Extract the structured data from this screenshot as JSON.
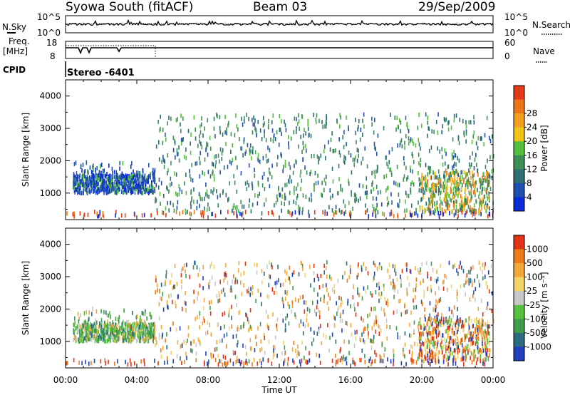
{
  "header": {
    "station": "Syowa South (fitACF)",
    "beam": "Beam 03",
    "date": "29/Sep/2009"
  },
  "top_panels": {
    "nsky_label": "N.Sky",
    "nsearch_label": "N.Search",
    "noise_ticks": [
      "10^5",
      "10^0"
    ],
    "freq_label": "Freq.",
    "freq_unit": "[MHz]",
    "freq_ticks": [
      "18",
      "8"
    ],
    "nave_ticks": [
      "60",
      "0"
    ],
    "nave_label": "Nave",
    "cpid_label": "CPID",
    "cpid_value": "Stereo -6401"
  },
  "colors": {
    "power_scale": [
      "#0a2bd6",
      "#1f4fb0",
      "#2f6e72",
      "#3e8f56",
      "#52c13c",
      "#f2c41a",
      "#f2a01e",
      "#ee7418",
      "#e23a16"
    ],
    "velocity_scale": [
      "#1f3fbf",
      "#2c6a80",
      "#3e9e4a",
      "#57c23f",
      "#c8c8c8",
      "#f5d36a",
      "#f3a838",
      "#ee7c1a",
      "#e23516"
    ]
  },
  "chart_data": [
    {
      "type": "heatmap",
      "title": "",
      "xlabel": "",
      "ylabel": "Slant Range [km]",
      "x_ticks": [
        "00:00",
        "04:00",
        "08:00",
        "12:00",
        "16:00",
        "20:00",
        "00:00"
      ],
      "y_ticks": [
        "1000",
        "2000",
        "3000",
        "4000"
      ],
      "xlim_hours": [
        0,
        24
      ],
      "ylim_km": [
        180,
        4500
      ],
      "colorbar": {
        "label": "Power [dB]",
        "ticks": [
          "4",
          "8",
          "12",
          "16",
          "20",
          "24",
          "28"
        ],
        "range": [
          0,
          32
        ]
      }
    },
    {
      "type": "heatmap",
      "title": "",
      "xlabel": "Time UT",
      "ylabel": "Slant Range [km]",
      "x_ticks": [
        "00:00",
        "04:00",
        "08:00",
        "12:00",
        "16:00",
        "20:00",
        "00:00"
      ],
      "y_ticks": [
        "1000",
        "2000",
        "3000",
        "4000"
      ],
      "xlim_hours": [
        0,
        24
      ],
      "ylim_km": [
        180,
        4500
      ],
      "colorbar": {
        "label": "Velocity [m s⁻¹]",
        "ticks": [
          "1000",
          "500",
          "100",
          "25",
          "-25",
          "-100",
          "-500",
          "-1000"
        ]
      }
    }
  ]
}
